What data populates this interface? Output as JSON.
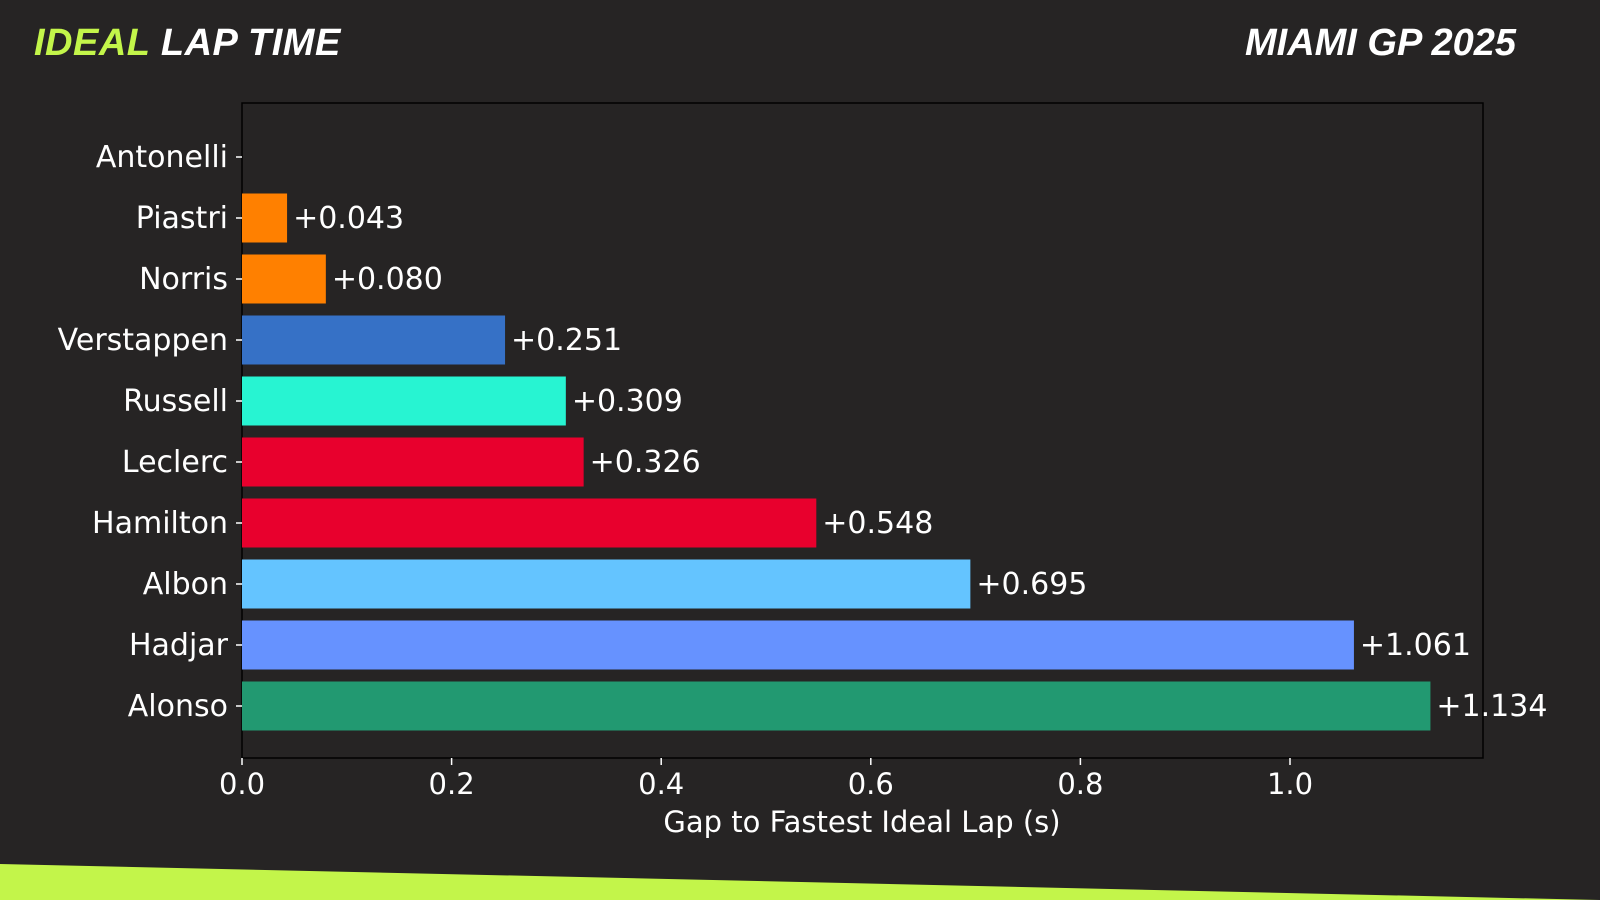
{
  "header": {
    "title_accent": "IDEAL",
    "title_rest": "LAP TIME",
    "event": "MIAMI GP 2025"
  },
  "colors": {
    "background": "#262424",
    "accent": "#c3f54a",
    "text": "#ffffff"
  },
  "chart_data": {
    "type": "bar",
    "orientation": "horizontal",
    "xlabel": "Gap to Fastest Ideal Lap (s)",
    "ylabel": "",
    "xlim": [
      0,
      1.18
    ],
    "xticks": [
      "0.0",
      "0.2",
      "0.4",
      "0.6",
      "0.8",
      "1.0"
    ],
    "grid": false,
    "bars": [
      {
        "driver": "Antonelli",
        "value": 0.0,
        "label": "",
        "color": "#27f4d2"
      },
      {
        "driver": "Piastri",
        "value": 0.043,
        "label": "+0.043",
        "color": "#ff8000"
      },
      {
        "driver": "Norris",
        "value": 0.08,
        "label": "+0.080",
        "color": "#ff8000"
      },
      {
        "driver": "Verstappen",
        "value": 0.251,
        "label": "+0.251",
        "color": "#3671c6"
      },
      {
        "driver": "Russell",
        "value": 0.309,
        "label": "+0.309",
        "color": "#27f4d2"
      },
      {
        "driver": "Leclerc",
        "value": 0.326,
        "label": "+0.326",
        "color": "#e8002d"
      },
      {
        "driver": "Hamilton",
        "value": 0.548,
        "label": "+0.548",
        "color": "#e8002d"
      },
      {
        "driver": "Albon",
        "value": 0.695,
        "label": "+0.695",
        "color": "#64c4ff"
      },
      {
        "driver": "Hadjar",
        "value": 1.061,
        "label": "+1.061",
        "color": "#6692ff"
      },
      {
        "driver": "Alonso",
        "value": 1.134,
        "label": "+1.134",
        "color": "#229971"
      }
    ]
  }
}
